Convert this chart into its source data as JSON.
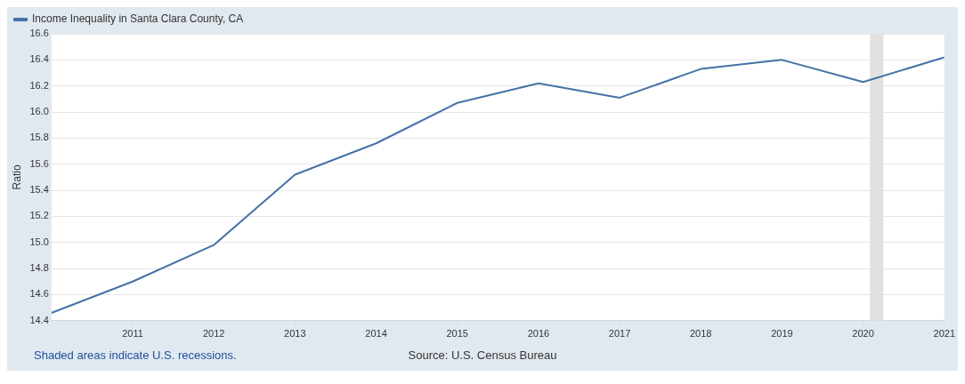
{
  "chart_data": {
    "type": "line",
    "ylabel": "Ratio",
    "x": [
      "2010",
      "2011",
      "2012",
      "2013",
      "2014",
      "2015",
      "2016",
      "2017",
      "2018",
      "2019",
      "2020",
      "2021"
    ],
    "series": [
      {
        "name": "Income Inequality in Santa Clara County, CA",
        "color": "#4572a7",
        "values": [
          14.46,
          14.7,
          14.98,
          15.52,
          15.76,
          16.07,
          16.22,
          16.11,
          16.33,
          16.4,
          16.23,
          16.42
        ]
      }
    ],
    "xlim": [
      "2010",
      "2021"
    ],
    "xticks": [
      "2011",
      "2012",
      "2013",
      "2014",
      "2015",
      "2016",
      "2017",
      "2018",
      "2019",
      "2020",
      "2021"
    ],
    "ylim": [
      14.4,
      16.6
    ],
    "yticks": [
      {
        "value": 14.4,
        "label": "14.4"
      },
      {
        "value": 14.6,
        "label": "14.6"
      },
      {
        "value": 14.8,
        "label": "14.8"
      },
      {
        "value": 15,
        "label": "15.0"
      },
      {
        "value": 15.2,
        "label": "15.2"
      },
      {
        "value": 15.4,
        "label": "15.4"
      },
      {
        "value": 15.6,
        "label": "15.6"
      },
      {
        "value": 15.8,
        "label": "15.8"
      },
      {
        "value": 16,
        "label": "16.0"
      },
      {
        "value": 16.2,
        "label": "16.2"
      },
      {
        "value": 16.4,
        "label": "16.4"
      },
      {
        "value": 16.6,
        "label": "16.6"
      }
    ],
    "bands": [
      {
        "axis": "x",
        "from": "2020-02",
        "to": "2020-04",
        "color": "#e1e1e1"
      }
    ],
    "grid": "y",
    "legend": "top left",
    "marker": "none",
    "line_style": "solid",
    "annotations": [
      "Shaded areas indicate U.S. recessions.",
      "Source: U.S. Census Bureau"
    ]
  }
}
